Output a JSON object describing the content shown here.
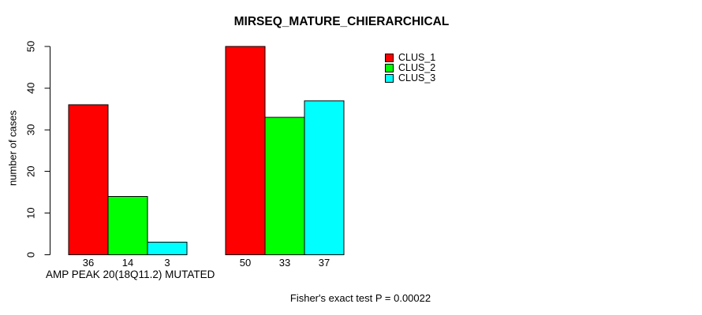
{
  "chart_data": {
    "type": "bar",
    "title": "MIRSEQ_MATURE_CHIERARCHICAL",
    "ylabel": "number of cases",
    "xlabel": "AMP PEAK 20(18Q11.2) MUTATED",
    "annotation": "Fisher's exact test P = 0.00022",
    "ylim": [
      0,
      50
    ],
    "yticks": [
      "0",
      "10",
      "20",
      "30",
      "40",
      "50"
    ],
    "grid": false,
    "legend_position": "top-right",
    "num_groups": 2,
    "series": [
      {
        "name": "CLUS_1",
        "color": "#ff0000",
        "values": [
          36,
          50
        ]
      },
      {
        "name": "CLUS_2",
        "color": "#00ff00",
        "values": [
          14,
          33
        ]
      },
      {
        "name": "CLUS_3",
        "color": "#00ffff",
        "values": [
          3,
          37
        ]
      }
    ],
    "colors": {
      "axis": "#000000",
      "text": "#000000",
      "bar_border": "#000000",
      "background": "#ffffff"
    }
  }
}
